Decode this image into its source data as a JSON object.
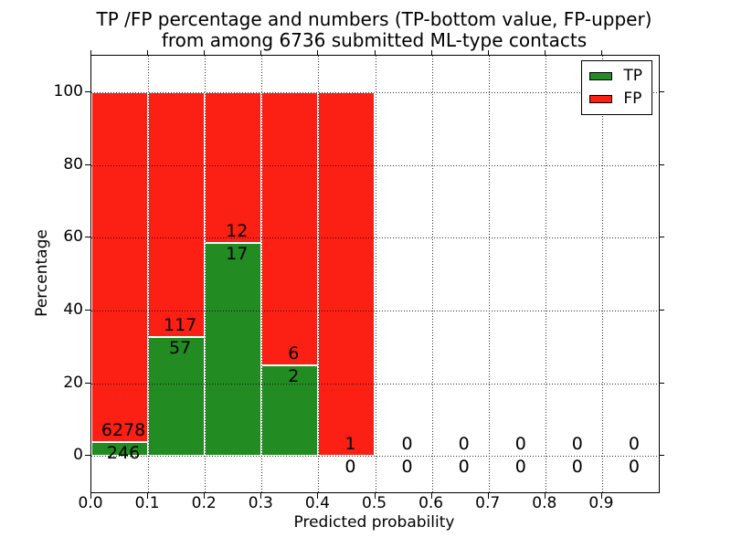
{
  "chart_data": {
    "type": "bar",
    "stacked": true,
    "title_lines": [
      "TP /FP percentage and numbers (TP-bottom value, FP-upper)",
      "from among 6736 submitted ML-type contacts"
    ],
    "total_submitted_contacts": 6736,
    "xlabel": "Predicted probability",
    "ylabel": "Percentage",
    "xlim": [
      0.0,
      1.0
    ],
    "ylim": [
      -10,
      110
    ],
    "xticks": [
      "0.0",
      "0.1",
      "0.2",
      "0.3",
      "0.4",
      "0.5",
      "0.6",
      "0.7",
      "0.8",
      "0.9"
    ],
    "yticks": [
      "0",
      "20",
      "40",
      "60",
      "80",
      "100"
    ],
    "grid": "dotted",
    "legend_position": "upper right",
    "legend": [
      {
        "label": "TP",
        "color": "#228b22"
      },
      {
        "label": "FP",
        "color": "#fb1f14"
      }
    ],
    "bin_width": 0.1,
    "annotation_scheme": "FP count above TP/FP boundary, TP count below boundary",
    "bins": [
      {
        "range": [
          0.0,
          0.1
        ],
        "tp": 246,
        "fp": 6278,
        "tp_pct": 3.77,
        "fp_pct": 96.23
      },
      {
        "range": [
          0.1,
          0.2
        ],
        "tp": 57,
        "fp": 117,
        "tp_pct": 32.76,
        "fp_pct": 67.24
      },
      {
        "range": [
          0.2,
          0.3
        ],
        "tp": 17,
        "fp": 12,
        "tp_pct": 58.62,
        "fp_pct": 41.38
      },
      {
        "range": [
          0.3,
          0.4
        ],
        "tp": 2,
        "fp": 6,
        "tp_pct": 25.0,
        "fp_pct": 75.0
      },
      {
        "range": [
          0.4,
          0.5
        ],
        "tp": 0,
        "fp": 1,
        "tp_pct": 0.0,
        "fp_pct": 100.0
      },
      {
        "range": [
          0.5,
          0.6
        ],
        "tp": 0,
        "fp": 0,
        "tp_pct": 0,
        "fp_pct": 0
      },
      {
        "range": [
          0.6,
          0.7
        ],
        "tp": 0,
        "fp": 0,
        "tp_pct": 0,
        "fp_pct": 0
      },
      {
        "range": [
          0.7,
          0.8
        ],
        "tp": 0,
        "fp": 0,
        "tp_pct": 0,
        "fp_pct": 0
      },
      {
        "range": [
          0.8,
          0.9
        ],
        "tp": 0,
        "fp": 0,
        "tp_pct": 0,
        "fp_pct": 0
      },
      {
        "range": [
          0.9,
          1.0
        ],
        "tp": 0,
        "fp": 0,
        "tp_pct": 0,
        "fp_pct": 0
      }
    ]
  },
  "colors": {
    "tp_green": "#228b22",
    "fp_red": "#fb1f14",
    "bar_edge": "#ffffff",
    "grid": "#0a0a0a",
    "axis": "#000000",
    "background": "#ffffff"
  }
}
